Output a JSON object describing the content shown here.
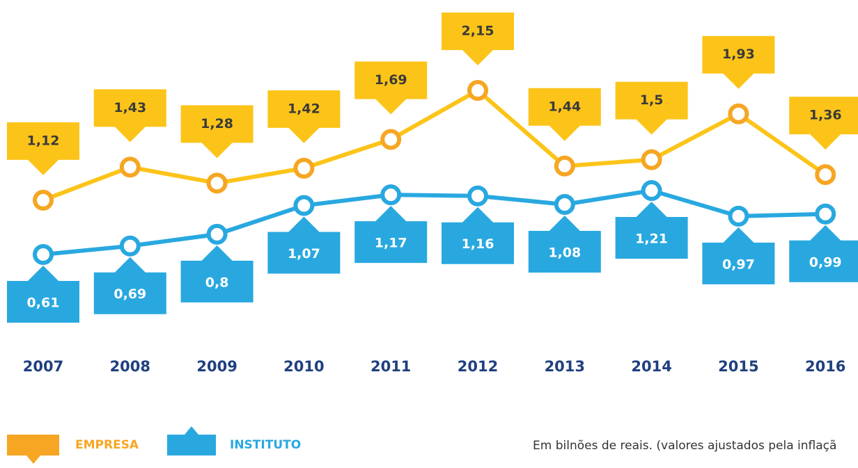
{
  "chart_data": {
    "type": "line",
    "categories": [
      "2007",
      "2008",
      "2009",
      "2010",
      "2011",
      "2012",
      "2013",
      "2014",
      "2015",
      "2016"
    ],
    "series": [
      {
        "name": "EMPRESA",
        "color": "#fcc419",
        "marker_color": "#f6a623",
        "values": [
          1.12,
          1.43,
          1.28,
          1.42,
          1.69,
          2.15,
          1.44,
          1.5,
          1.93,
          1.36
        ],
        "value_labels": [
          "1,12",
          "1,43",
          "1,28",
          "1,42",
          "1,69",
          "2,15",
          "1,44",
          "1,5",
          "1,93",
          "1,36"
        ]
      },
      {
        "name": "INSTITUTO",
        "color": "#29a8e0",
        "marker_color": "#29a8e0",
        "values": [
          0.61,
          0.69,
          0.8,
          1.07,
          1.17,
          1.16,
          1.08,
          1.21,
          0.97,
          0.99
        ],
        "value_labels": [
          "0,61",
          "0,69",
          "0,8",
          "1,07",
          "1,17",
          "1,16",
          "1,08",
          "1,21",
          "0,97",
          "0,99"
        ]
      }
    ],
    "note": "Em bilnões de reais. (valores ajustados pela inflaçã"
  }
}
